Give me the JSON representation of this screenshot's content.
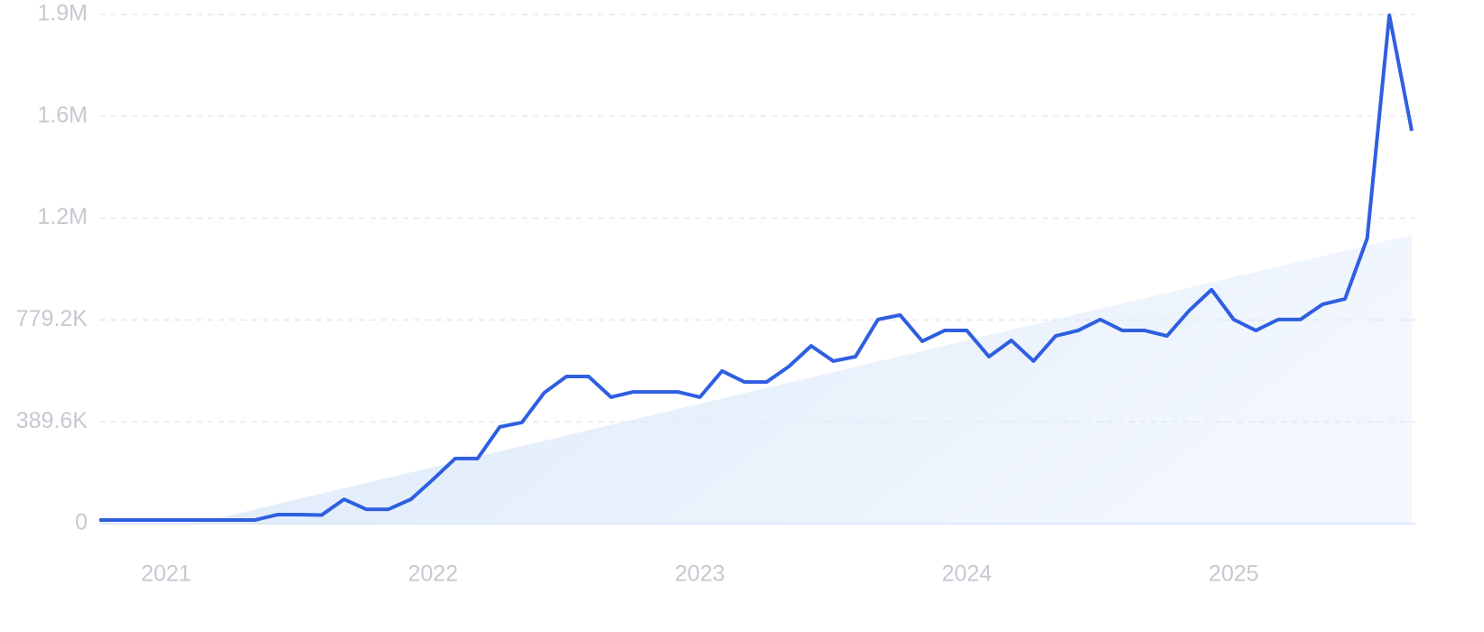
{
  "chart_data": {
    "type": "line",
    "x": [
      2020.75,
      2020.833,
      2020.917,
      2021,
      2021.083,
      2021.167,
      2021.25,
      2021.333,
      2021.417,
      2021.5,
      2021.583,
      2021.667,
      2021.75,
      2021.833,
      2021.917,
      2022,
      2022.083,
      2022.167,
      2022.25,
      2022.333,
      2022.417,
      2022.5,
      2022.583,
      2022.667,
      2022.75,
      2022.833,
      2022.917,
      2023,
      2023.083,
      2023.167,
      2023.25,
      2023.333,
      2023.417,
      2023.5,
      2023.583,
      2023.667,
      2023.75,
      2023.833,
      2023.917,
      2024,
      2024.083,
      2024.167,
      2024.25,
      2024.333,
      2024.417,
      2024.5,
      2024.583,
      2024.667,
      2024.75,
      2024.833,
      2024.917,
      2025,
      2025.083,
      2025.167,
      2025.25,
      2025.333,
      2025.417,
      2025.5,
      2025.583,
      2025.667
    ],
    "series": [
      {
        "color": "#2f5fe0",
        "values": [
          14000,
          14000,
          14000,
          14000,
          14000,
          14000,
          14000,
          14000,
          34500,
          34500,
          33000,
          93000,
          55000,
          55000,
          93000,
          169000,
          249000,
          249000,
          370000,
          387000,
          501000,
          563000,
          563000,
          484000,
          504000,
          504000,
          504000,
          484000,
          584000,
          542000,
          542000,
          601000,
          680000,
          622000,
          639000,
          781000,
          798000,
          698000,
          739000,
          739000,
          639000,
          701000,
          622000,
          718000,
          739000,
          781000,
          739000,
          739000,
          718000,
          815000,
          895000,
          781000,
          739000,
          781000,
          781000,
          839000,
          860000,
          1091000,
          1945000,
          1503000
        ]
      }
    ],
    "trend": {
      "x": [
        2021.108,
        2025.667
      ],
      "values": [
        0,
        1105000
      ],
      "color": "#dbe8fa"
    },
    "xlim": [
      2020.75,
      2025.667
    ],
    "xticks": [
      2021,
      2022,
      2023,
      2024,
      2025
    ],
    "ylim": [
      0,
      1948000
    ],
    "yticks": [
      0,
      {
        "value": 389600,
        "label": "389.6K"
      },
      {
        "value": 779200,
        "label": "779.2K"
      },
      {
        "value": 1168800,
        "label": "1.2M"
      },
      {
        "value": 1558400,
        "label": "1.6M"
      },
      {
        "value": 1948000,
        "label": "1.9M"
      }
    ],
    "grid": true
  }
}
